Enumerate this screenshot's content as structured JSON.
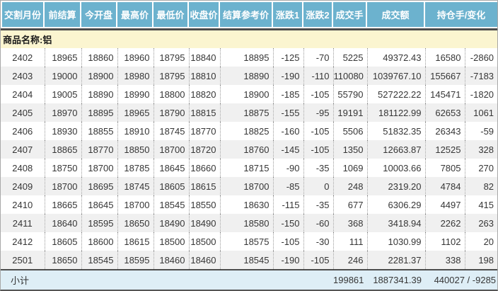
{
  "chart_data": {
    "type": "table",
    "title": "商品名称:铝",
    "header_labels": [
      "交割月份",
      "前结算",
      "今开盘",
      "最高价",
      "最低价",
      "收盘价",
      "结算参考价",
      "涨跌1",
      "涨跌2",
      "成交手",
      "成交额",
      "持仓手/变化"
    ],
    "columns": [
      "交割月份",
      "前结算",
      "今开盘",
      "最高价",
      "最低价",
      "收盘价",
      "结算参考价",
      "涨跌1",
      "涨跌2",
      "成交手",
      "成交额",
      "持仓手",
      "变化"
    ],
    "rows": [
      [
        "2402",
        "18965",
        "18860",
        "18960",
        "18795",
        "18840",
        "18895",
        "-125",
        "-70",
        "5225",
        "49372.43",
        "16580",
        "-2860"
      ],
      [
        "2403",
        "19000",
        "18900",
        "18980",
        "18795",
        "18810",
        "18890",
        "-190",
        "-110",
        "110080",
        "1039767.10",
        "155667",
        "-7183"
      ],
      [
        "2404",
        "19005",
        "18890",
        "18990",
        "18800",
        "18820",
        "18900",
        "-185",
        "-105",
        "55790",
        "527222.22",
        "145471",
        "-1820"
      ],
      [
        "2405",
        "18970",
        "18895",
        "18965",
        "18790",
        "18815",
        "18875",
        "-155",
        "-95",
        "19191",
        "181122.99",
        "62653",
        "1061"
      ],
      [
        "2406",
        "18930",
        "18855",
        "18910",
        "18745",
        "18770",
        "18825",
        "-160",
        "-105",
        "5506",
        "51832.35",
        "26343",
        "-59"
      ],
      [
        "2407",
        "18865",
        "18770",
        "18850",
        "18700",
        "18720",
        "18760",
        "-145",
        "-105",
        "1350",
        "12663.87",
        "12525",
        "328"
      ],
      [
        "2408",
        "18750",
        "18700",
        "18785",
        "18645",
        "18660",
        "18715",
        "-90",
        "-35",
        "1069",
        "10003.66",
        "7805",
        "270"
      ],
      [
        "2409",
        "18700",
        "18695",
        "18745",
        "18605",
        "18615",
        "18700",
        "-85",
        "0",
        "248",
        "2319.20",
        "4784",
        "82"
      ],
      [
        "2410",
        "18665",
        "18645",
        "18700",
        "18545",
        "18550",
        "18630",
        "-115",
        "-35",
        "677",
        "6306.29",
        "4497",
        "415"
      ],
      [
        "2411",
        "18640",
        "18595",
        "18650",
        "18490",
        "18490",
        "18580",
        "-150",
        "-60",
        "368",
        "3418.94",
        "2262",
        "263"
      ],
      [
        "2412",
        "18605",
        "18600",
        "18615",
        "18500",
        "18500",
        "18575",
        "-105",
        "-30",
        "111",
        "1030.99",
        "1102",
        "20"
      ],
      [
        "2501",
        "18650",
        "18545",
        "18595",
        "18460",
        "18460",
        "18545",
        "-190",
        "-105",
        "246",
        "2281.37",
        "338",
        "198"
      ]
    ],
    "subtotal": {
      "label": "小计",
      "volume": "199861",
      "turnover": "1887341.39",
      "open_interest_and_change": "440027 / -9285"
    }
  },
  "colors": {
    "header_bg": "#6CB2CE",
    "header_text": "#FFFFFF",
    "section_bg": "#FBF5D0",
    "stripe_bg": "#F0F0F0",
    "subtotal_bg": "#DEEEF6",
    "divider": "#4D4D4D",
    "body_text": "#363636"
  }
}
